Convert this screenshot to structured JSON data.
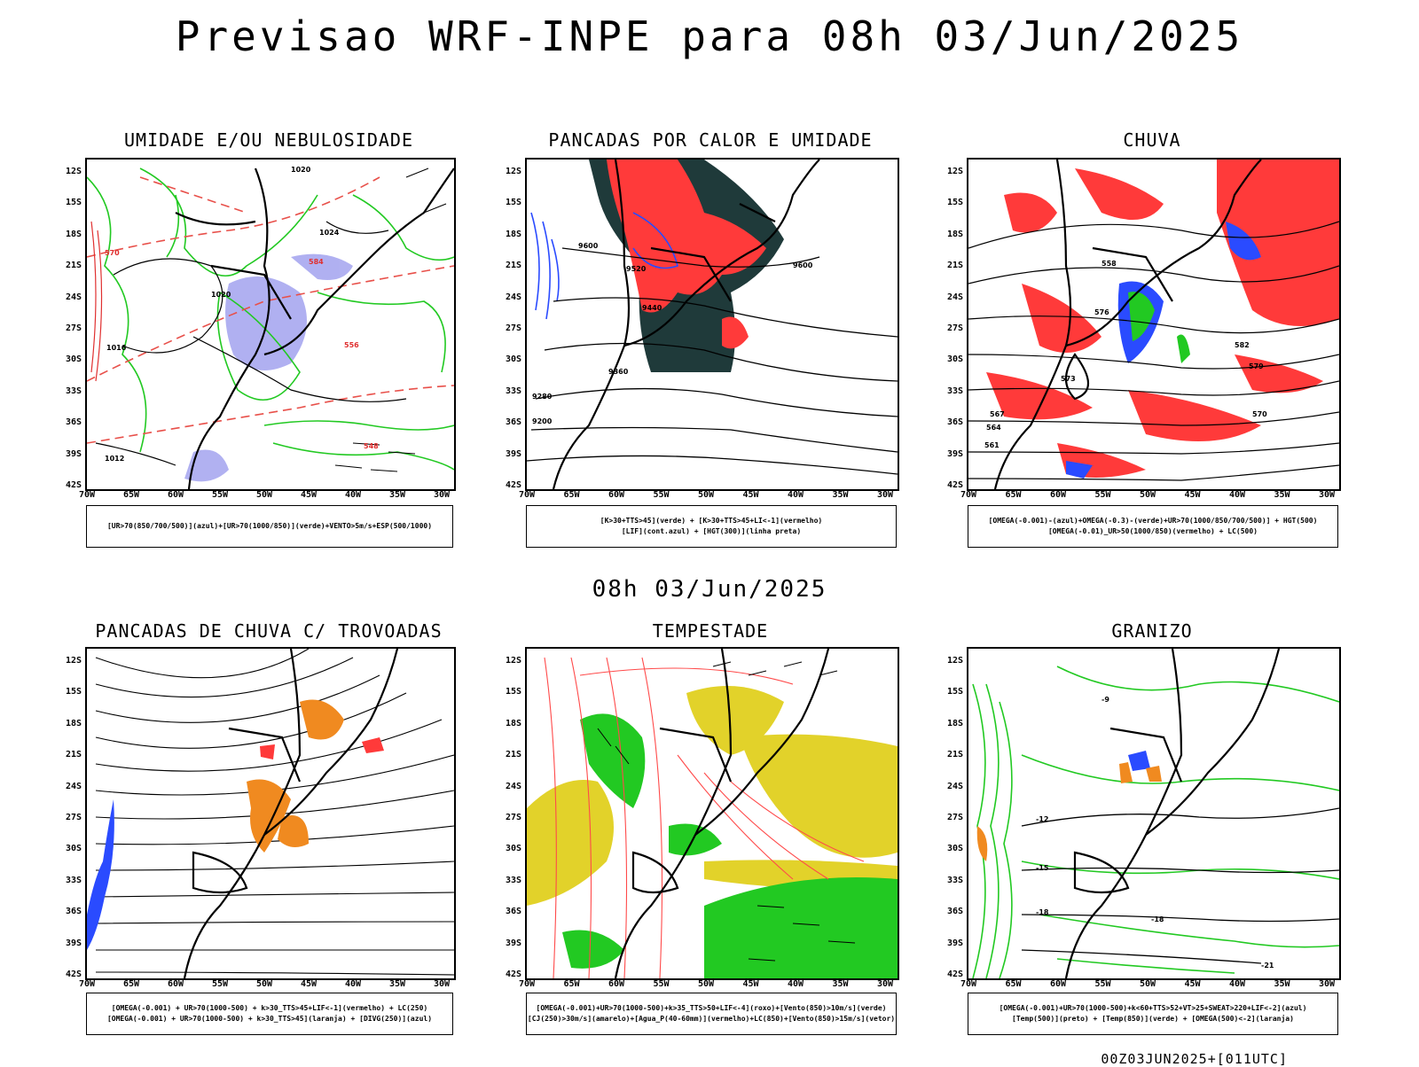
{
  "header": {
    "title": "Previsao WRF-INPE  para 08h 03/Jun/2025",
    "subtitle": "08h 03/Jun/2025"
  },
  "axes": {
    "lat_labels": [
      "12S",
      "15S",
      "18S",
      "21S",
      "24S",
      "27S",
      "30S",
      "33S",
      "36S",
      "39S",
      "42S"
    ],
    "lon_labels": [
      "70W",
      "65W",
      "60W",
      "55W",
      "50W",
      "45W",
      "40W",
      "35W",
      "30W"
    ]
  },
  "panels": [
    {
      "title": "UMIDADE E/OU NEBULOSIDADE",
      "legend": [
        "[UR>70(850/700/500)](azul)+[UR>70(1000/850)](verde)+VENTO>5m/s+ESP(500/1000)"
      ],
      "contour_labels": [
        "1020",
        "1024",
        "1016",
        "1012",
        "1020",
        "584",
        "570",
        "556",
        "548"
      ]
    },
    {
      "title": "PANCADAS POR CALOR E UMIDADE",
      "legend": [
        "[K>30+TTS>45](verde) + [K>30+TTS>45+LI<-1](vermelho)",
        "[LIF](cont.azul) + [HGT(300)](linha preta)"
      ],
      "contour_labels": [
        "9600",
        "9520",
        "9440",
        "9360",
        "9280",
        "9200",
        "9600"
      ]
    },
    {
      "title": "CHUVA",
      "legend": [
        "[OMEGA(-0.001)-(azul)+OMEGA(-0.3)-(verde)+UR>70(1000/850/700/500)] + HGT(500)",
        "[OMEGA(-0.01)_UR>50(1000/850)(vermelho) + LC(500)"
      ],
      "contour_labels": [
        "582",
        "579",
        "576",
        "573",
        "570",
        "567",
        "564",
        "561",
        "558"
      ]
    },
    {
      "title": "PANCADAS DE CHUVA C/ TROVOADAS",
      "legend": [
        "[OMEGA(-0.001) + UR>70(1000-500) + k>30_TTS>45+LIF<-1](vermelho) + LC(250)",
        "[OMEGA(-0.001) + UR>70(1000-500) + k>30_TTS>45](laranja) + [DIVG(250)](azul)"
      ],
      "contour_labels": []
    },
    {
      "title": "TEMPESTADE",
      "legend": [
        "[OMEGA(-0.001)+UR>70(1000-500)+k>35_TTS>50+LIF<-4](roxo)+[Vento(850)>10m/s](verde)",
        "[CJ(250)>30m/s](amarelo)+[Agua_P(40-60mm)](vermelho)+LC(850)+[Vento(850)>15m/s](vetor)"
      ],
      "contour_labels": []
    },
    {
      "title": "GRANIZO",
      "legend": [
        "[OMEGA(-0.001)+UR>70(1000-500)+k<60+TTS>52+VT>25+SWEAT>220+LIF<-2](azul)",
        "[Temp(500)](preto) + [Temp(850)](verde) + [OMEGA(500)<-2](laranja)"
      ],
      "contour_labels": [
        "-12",
        "-15",
        "-18",
        "-18",
        "-21",
        "-9"
      ]
    }
  ],
  "footer": "00Z03JUN2025+[011UTC]",
  "colors": {
    "green": "#22c922",
    "red": "#ff3a3a",
    "blue": "#2a4bff",
    "lavender": "#a8a8f0",
    "darkteal": "#1f3a3a",
    "yellow": "#e2d22a",
    "orange": "#f08a20"
  }
}
